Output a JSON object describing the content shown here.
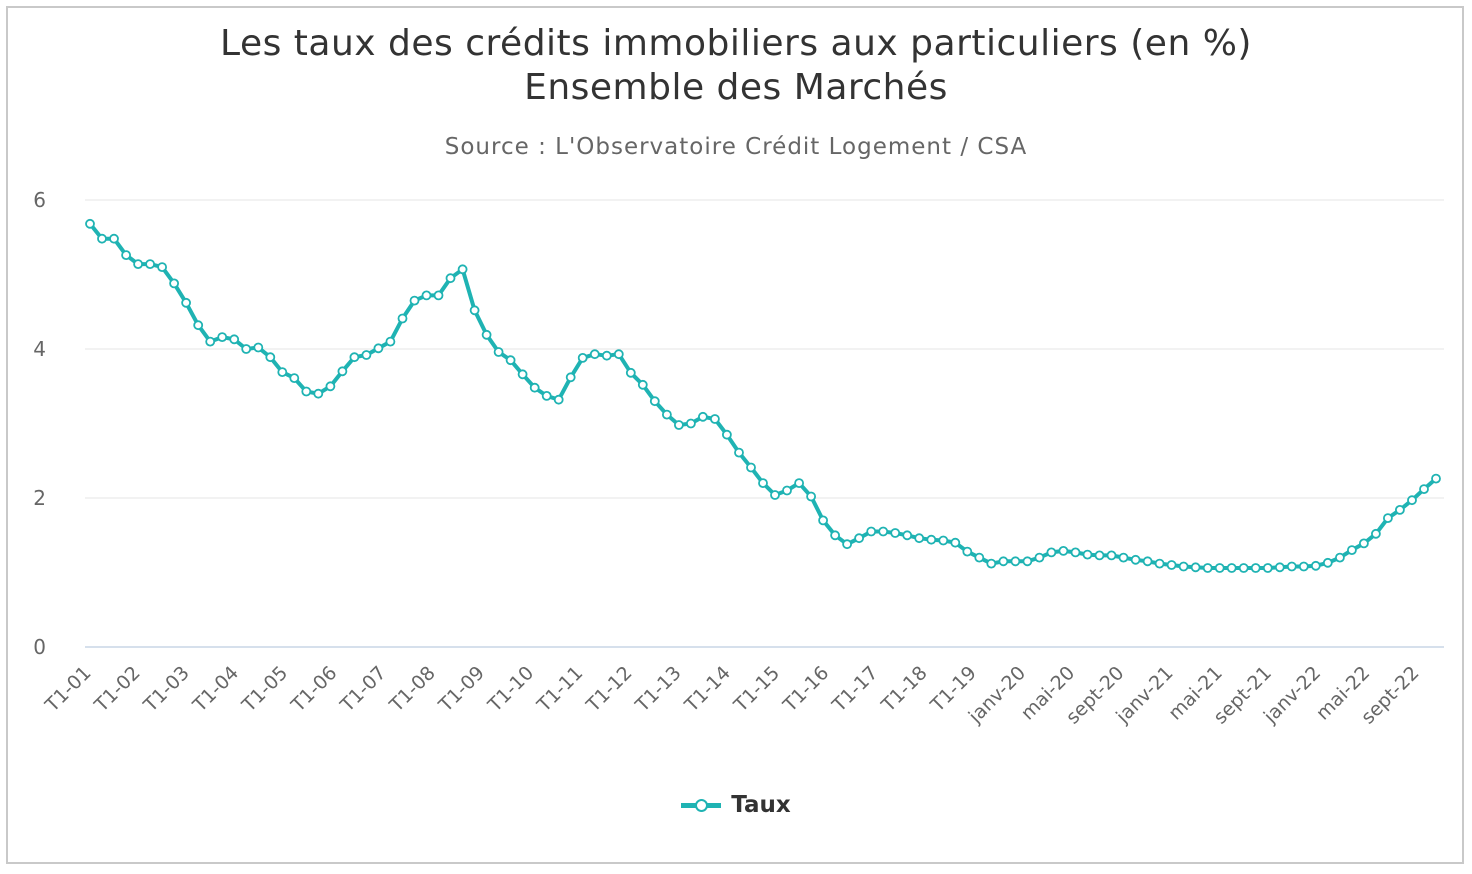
{
  "header": {
    "title_line1": "Les taux des crédits immobiliers aux particuliers (en %)",
    "title_line2": "Ensemble des Marchés",
    "subtitle": "Source : L'Observatoire Crédit Logement / CSA"
  },
  "colors": {
    "series": "#1fb3b3",
    "grid": "#e6e6e6",
    "axis_text": "#666666"
  },
  "chart_data": {
    "type": "line",
    "title": "Les taux des crédits immobiliers aux particuliers (en %) Ensemble des Marchés",
    "subtitle": "Source : L'Observatoire Crédit Logement / CSA",
    "ylim": [
      0,
      6
    ],
    "y_ticks": [
      "0",
      "2",
      "4",
      "6"
    ],
    "grid": true,
    "legend_position": "bottom-center",
    "x_tick_labels": [
      "T1-01",
      "T1-02",
      "T1-03",
      "T1-04",
      "T1-05",
      "T1-06",
      "T1-07",
      "T1-08",
      "T1-09",
      "T1-10",
      "T1-11",
      "T1-12",
      "T1-13",
      "T1-14",
      "T1-15",
      "T1-16",
      "T1-17",
      "T1-18",
      "T1-19",
      "janv-20",
      "mai-20",
      "sept-20",
      "janv-21",
      "mai-21",
      "sept-21",
      "janv-22",
      "mai-22",
      "sept-22"
    ],
    "series": [
      {
        "name": "Taux",
        "values": [
          5.68,
          5.48,
          5.48,
          5.26,
          5.14,
          5.14,
          5.1,
          4.88,
          4.62,
          4.32,
          4.1,
          4.16,
          4.13,
          4.0,
          4.02,
          3.89,
          3.69,
          3.61,
          3.43,
          3.4,
          3.5,
          3.7,
          3.89,
          3.92,
          4.01,
          4.1,
          4.41,
          4.65,
          4.72,
          4.72,
          4.95,
          5.07,
          4.52,
          4.19,
          3.96,
          3.85,
          3.66,
          3.48,
          3.37,
          3.32,
          3.62,
          3.88,
          3.93,
          3.91,
          3.93,
          3.68,
          3.52,
          3.3,
          3.12,
          2.98,
          3.0,
          3.09,
          3.06,
          2.85,
          2.61,
          2.41,
          2.2,
          2.04,
          2.1,
          2.2,
          2.02,
          1.7,
          1.5,
          1.38,
          1.46,
          1.55,
          1.55,
          1.53,
          1.5,
          1.46,
          1.44,
          1.43,
          1.4,
          1.28,
          1.2,
          1.12,
          1.15,
          1.15,
          1.15,
          1.2,
          1.27,
          1.29,
          1.27,
          1.24,
          1.23,
          1.23,
          1.2,
          1.17,
          1.15,
          1.12,
          1.1,
          1.08,
          1.07,
          1.06,
          1.06,
          1.06,
          1.06,
          1.06,
          1.06,
          1.07,
          1.08,
          1.08,
          1.09,
          1.13,
          1.2,
          1.3,
          1.39,
          1.52,
          1.73,
          1.84,
          1.97,
          2.12,
          2.26
        ]
      }
    ]
  }
}
